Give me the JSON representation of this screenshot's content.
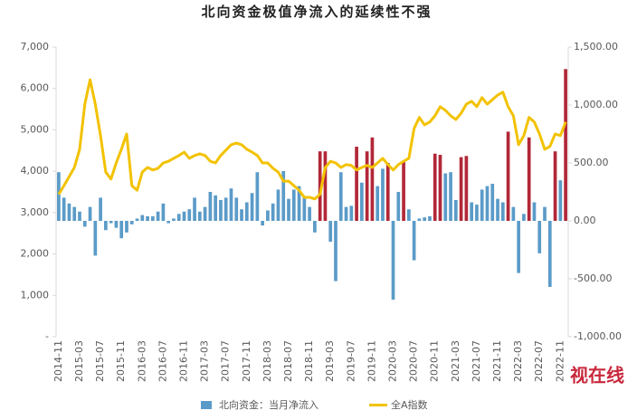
{
  "chart_data": {
    "type": "combo",
    "title": "北向资金极值净流入的延续性不强",
    "categories": [
      "2014-11",
      null,
      null,
      null,
      "2015-03",
      null,
      null,
      null,
      "2015-07",
      null,
      null,
      null,
      "2015-11",
      null,
      null,
      null,
      "2016-03",
      null,
      null,
      null,
      "2016-07",
      null,
      null,
      null,
      "2016-11",
      null,
      null,
      null,
      "2017-03",
      null,
      null,
      null,
      "2017-07",
      null,
      null,
      null,
      "2017-11",
      null,
      null,
      null,
      "2018-03",
      null,
      null,
      null,
      "2018-07",
      null,
      null,
      null,
      "2018-11",
      null,
      null,
      null,
      "2019-03",
      null,
      null,
      null,
      "2019-07",
      null,
      null,
      null,
      "2019-11",
      null,
      null,
      null,
      "2020-03",
      null,
      null,
      null,
      "2020-07",
      null,
      null,
      null,
      "2020-11",
      null,
      null,
      null,
      "2021-03",
      null,
      null,
      null,
      "2021-07",
      null,
      null,
      null,
      "2021-11",
      null,
      null,
      null,
      "2022-03",
      null,
      null,
      null,
      "2022-07",
      null,
      null,
      null,
      "2022-11",
      null
    ],
    "series": [
      {
        "name": "北向资金：当月净流入",
        "type": "bar",
        "axis": "y2",
        "color": "#5b9bc8",
        "values": [
          420,
          200,
          150,
          120,
          80,
          -50,
          120,
          -300,
          200,
          -80,
          -20,
          -60,
          -150,
          -100,
          -30,
          20,
          50,
          40,
          40,
          80,
          150,
          -20,
          20,
          60,
          80,
          100,
          200,
          80,
          120,
          250,
          220,
          180,
          200,
          280,
          200,
          100,
          160,
          240,
          420,
          -40,
          90,
          150,
          270,
          430,
          190,
          270,
          300,
          210,
          120,
          -100,
          600,
          600,
          -180,
          -520,
          420,
          120,
          130,
          640,
          330,
          600,
          720,
          300,
          450,
          500,
          -680,
          250,
          510,
          100,
          -340,
          20,
          30,
          40,
          580,
          570,
          410,
          420,
          180,
          550,
          560,
          160,
          140,
          270,
          300,
          320,
          190,
          160,
          770,
          120,
          -450,
          60,
          720,
          160,
          -280,
          120,
          -570,
          600,
          350,
          1310
        ],
        "colors": [
          "#5b9bc8",
          "#5b9bc8",
          "#5b9bc8",
          "#5b9bc8",
          "#5b9bc8",
          "#5b9bc8",
          "#5b9bc8",
          "#5b9bc8",
          "#5b9bc8",
          "#5b9bc8",
          "#5b9bc8",
          "#5b9bc8",
          "#5b9bc8",
          "#5b9bc8",
          "#5b9bc8",
          "#5b9bc8",
          "#5b9bc8",
          "#5b9bc8",
          "#5b9bc8",
          "#5b9bc8",
          "#5b9bc8",
          "#5b9bc8",
          "#5b9bc8",
          "#5b9bc8",
          "#5b9bc8",
          "#5b9bc8",
          "#5b9bc8",
          "#5b9bc8",
          "#5b9bc8",
          "#5b9bc8",
          "#5b9bc8",
          "#5b9bc8",
          "#5b9bc8",
          "#5b9bc8",
          "#5b9bc8",
          "#5b9bc8",
          "#5b9bc8",
          "#5b9bc8",
          "#5b9bc8",
          "#5b9bc8",
          "#5b9bc8",
          "#5b9bc8",
          "#5b9bc8",
          "#5b9bc8",
          "#5b9bc8",
          "#5b9bc8",
          "#5b9bc8",
          "#5b9bc8",
          "#5b9bc8",
          "#5b9bc8",
          "#b22838",
          "#b22838",
          "#5b9bc8",
          "#5b9bc8",
          "#5b9bc8",
          "#5b9bc8",
          "#5b9bc8",
          "#b22838",
          "#5b9bc8",
          "#b22838",
          "#b22838",
          "#5b9bc8",
          "#5b9bc8",
          "#b22838",
          "#5b9bc8",
          "#5b9bc8",
          "#b22838",
          "#5b9bc8",
          "#5b9bc8",
          "#5b9bc8",
          "#5b9bc8",
          "#5b9bc8",
          "#b22838",
          "#b22838",
          "#5b9bc8",
          "#5b9bc8",
          "#5b9bc8",
          "#b22838",
          "#b22838",
          "#5b9bc8",
          "#5b9bc8",
          "#5b9bc8",
          "#5b9bc8",
          "#5b9bc8",
          "#5b9bc8",
          "#5b9bc8",
          "#b22838",
          "#5b9bc8",
          "#5b9bc8",
          "#5b9bc8",
          "#b22838",
          "#5b9bc8",
          "#5b9bc8",
          "#5b9bc8",
          "#5b9bc8",
          "#b22838",
          "#5b9bc8",
          "#b22838"
        ]
      },
      {
        "name": "全A指数",
        "type": "line",
        "axis": "y",
        "color": "#f2c200",
        "values": [
          3440,
          3650,
          3870,
          4090,
          4530,
          5620,
          6210,
          5620,
          4860,
          3980,
          3810,
          4200,
          4530,
          4900,
          3650,
          3540,
          3980,
          4090,
          4030,
          4070,
          4200,
          4240,
          4310,
          4380,
          4460,
          4310,
          4380,
          4420,
          4380,
          4240,
          4200,
          4380,
          4510,
          4640,
          4680,
          4640,
          4530,
          4460,
          4380,
          4200,
          4200,
          4070,
          3980,
          3760,
          3760,
          3650,
          3540,
          3370,
          3370,
          3330,
          3440,
          4090,
          4240,
          4200,
          4090,
          4160,
          4140,
          4030,
          4090,
          4140,
          4090,
          4200,
          4310,
          4160,
          4030,
          4160,
          4240,
          4310,
          5030,
          5300,
          5120,
          5190,
          5340,
          5560,
          5470,
          5340,
          5250,
          5400,
          5620,
          5690,
          5560,
          5780,
          5620,
          5730,
          5840,
          5910,
          5560,
          5340,
          4640,
          4860,
          5300,
          5190,
          4900,
          4530,
          4600,
          4900,
          4860,
          5190
        ]
      }
    ],
    "ylim": [
      0,
      7000
    ],
    "yticks": [
      {
        "value": 0,
        "label": "-"
      },
      {
        "value": 1000,
        "label": "1,000"
      },
      {
        "value": 2000,
        "label": "2,000"
      },
      {
        "value": 3000,
        "label": "3,000"
      },
      {
        "value": 4000,
        "label": "4,000"
      },
      {
        "value": 5000,
        "label": "5,000"
      },
      {
        "value": 6000,
        "label": "6,000"
      },
      {
        "value": 7000,
        "label": "7,000"
      }
    ],
    "y2lim": [
      -1000,
      1500
    ],
    "y2ticks": [
      {
        "value": -1000,
        "label": "-1,000.00"
      },
      {
        "value": -500,
        "label": "-500.00"
      },
      {
        "value": 0,
        "label": "0.00"
      },
      {
        "value": 500,
        "label": "500.00"
      },
      {
        "value": 1000,
        "label": "1,000.00"
      },
      {
        "value": 1500,
        "label": "1,500.00"
      }
    ],
    "legend": "bottom",
    "watermark": "视在线"
  }
}
